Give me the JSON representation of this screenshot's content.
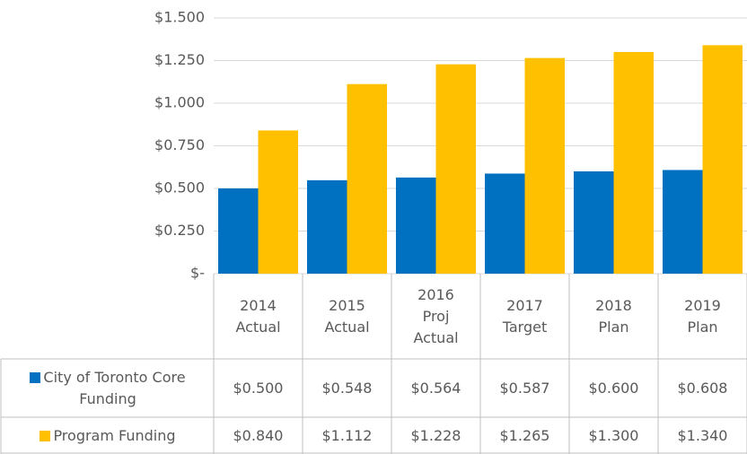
{
  "chart_data": {
    "type": "bar",
    "categories": [
      "2014 Actual",
      "2015 Actual",
      "2016 Proj Actual",
      "2017 Target",
      "2018 Plan",
      "2019 Plan"
    ],
    "series": [
      {
        "name": "City of Toronto Core Funding",
        "color": "#0070c0",
        "values": [
          0.5,
          0.548,
          0.564,
          0.587,
          0.6,
          0.608
        ],
        "value_labels": [
          "$0.500",
          "$0.548",
          "$0.564",
          "$0.587",
          "$0.600",
          "$0.608"
        ]
      },
      {
        "name": "Program Funding",
        "color": "#ffc000",
        "values": [
          0.84,
          1.112,
          1.228,
          1.265,
          1.3,
          1.34
        ],
        "value_labels": [
          "$0.840",
          "$1.112",
          "$1.228",
          "$1.265",
          "$1.300",
          "$1.340"
        ]
      }
    ],
    "ylim": [
      0,
      1.5
    ],
    "yticks": [
      {
        "value": 0,
        "label": "$-"
      },
      {
        "value": 0.25,
        "label": "$0.250"
      },
      {
        "value": 0.5,
        "label": "$0.500"
      },
      {
        "value": 0.75,
        "label": "$0.750"
      },
      {
        "value": 1,
        "label": "$1.000"
      },
      {
        "value": 1.25,
        "label": "$1.250"
      },
      {
        "value": 1.5,
        "label": "$1.500"
      }
    ],
    "grid": true
  }
}
